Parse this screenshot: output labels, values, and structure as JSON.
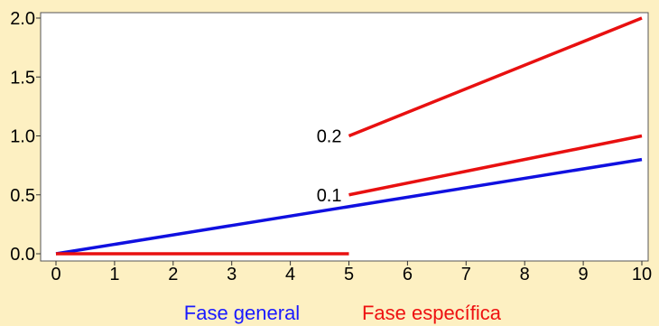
{
  "chart_data": {
    "type": "line",
    "title": "",
    "xlabel": "",
    "ylabel": "",
    "xlim": [
      0,
      10
    ],
    "ylim": [
      0,
      2
    ],
    "x_ticks": [
      "0",
      "1",
      "2",
      "3",
      "4",
      "5",
      "6",
      "7",
      "8",
      "9",
      "10"
    ],
    "y_ticks": [
      "0.0",
      "0.5",
      "1.0",
      "1.5",
      "2.0"
    ],
    "grid": false,
    "series": [
      {
        "name": "Fase general",
        "color": "#1010e0",
        "points": [
          [
            0,
            0
          ],
          [
            10,
            0.8
          ]
        ]
      },
      {
        "name": "Fase específica",
        "color": "#e81010",
        "points": [
          [
            0,
            0
          ],
          [
            5,
            0
          ]
        ]
      },
      {
        "name": "Fase específica",
        "color": "#e81010",
        "label": "0.1",
        "points": [
          [
            5,
            0.5
          ],
          [
            10,
            1.0
          ]
        ]
      },
      {
        "name": "Fase específica",
        "color": "#e81010",
        "label": "0.2",
        "points": [
          [
            5,
            1.0
          ],
          [
            10,
            2.0
          ]
        ]
      }
    ],
    "legend": {
      "placement": "bottom",
      "entries": [
        {
          "label": "Fase general",
          "color": "#1010e0"
        },
        {
          "label": "Fase específica",
          "color": "#e81010"
        }
      ]
    }
  }
}
